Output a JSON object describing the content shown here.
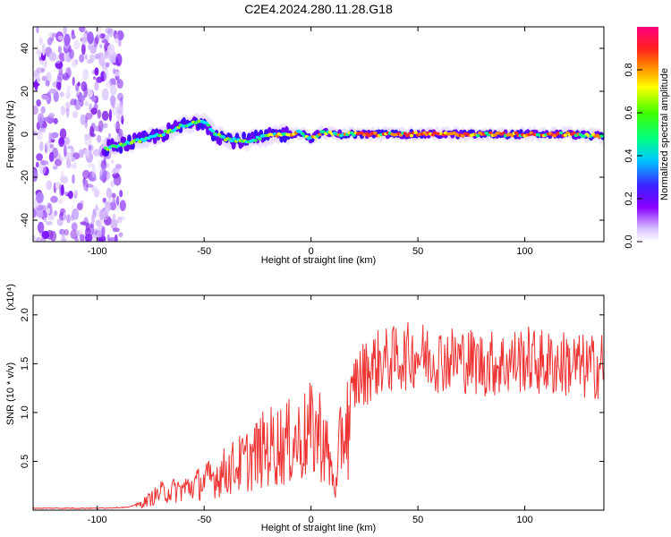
{
  "figure_title": "C2E4.2024.280.11.28.G18",
  "chart_data": [
    {
      "type": "heatmap",
      "title": "",
      "xlabel": "Height of straight line (km)",
      "ylabel": "Frequency (Hz)",
      "xlim": [
        -130,
        137
      ],
      "ylim": [
        -50,
        50
      ],
      "xticks": [
        -100,
        -50,
        0,
        50,
        100
      ],
      "yticks": [
        -40,
        -20,
        0,
        20,
        40
      ],
      "grid": false,
      "colorbar": {
        "label": "Normalized spectral amplitude",
        "range": [
          0.0,
          1.0
        ],
        "ticks": [
          "0.0",
          "0.2",
          "0.4",
          "0.6",
          "0.8"
        ],
        "colors": [
          "#ffffff",
          "#8a00ff",
          "#3a20ff",
          "#00c8ff",
          "#00ff80",
          "#40ff00",
          "#ffff00",
          "#ff8000",
          "#ff2020",
          "#ff0080"
        ]
      },
      "ridge": {
        "description_points_x": [
          -97,
          -90,
          -80,
          -70,
          -60,
          -50,
          -45,
          -40,
          -35,
          -30,
          -25,
          -20,
          -15,
          -10,
          -5,
          0,
          5,
          10,
          20,
          40,
          60,
          80,
          100,
          120,
          137
        ],
        "description_points_y": [
          -7,
          -5,
          -3,
          0,
          4,
          6,
          0,
          -2,
          -3,
          -3,
          -2,
          -1,
          0,
          0,
          1,
          -2,
          1,
          0,
          0,
          0,
          0,
          0,
          0,
          0,
          -1
        ]
      }
    },
    {
      "type": "line",
      "title": "",
      "xlabel": "Height of straight line (km)",
      "ylabel": "SNR (10 * v/v)",
      "y_multiplier": "(x10⁴)",
      "xlim": [
        -130,
        137
      ],
      "ylim": [
        0,
        2.2
      ],
      "xticks": [
        -100,
        -50,
        0,
        50,
        100
      ],
      "yticks": [
        "0.5",
        "1.0",
        "1.5",
        "2.0"
      ],
      "grid": false,
      "series_color": "#ee3333",
      "envelope_x": [
        -130,
        -100,
        -85,
        -80,
        -70,
        -60,
        -50,
        -40,
        -30,
        -20,
        -10,
        -5,
        0,
        5,
        10,
        12,
        14,
        20,
        30,
        40,
        50,
        60,
        70,
        80,
        90,
        100,
        110,
        120,
        130,
        137
      ],
      "envelope_y": [
        0.02,
        0.02,
        0.03,
        0.08,
        0.25,
        0.3,
        0.4,
        0.55,
        0.7,
        0.9,
        0.95,
        1.0,
        1.1,
        1.1,
        0.5,
        0.28,
        1.1,
        1.3,
        1.5,
        1.55,
        1.6,
        1.55,
        1.55,
        1.5,
        1.5,
        1.55,
        1.5,
        1.5,
        1.45,
        1.5
      ]
    }
  ]
}
